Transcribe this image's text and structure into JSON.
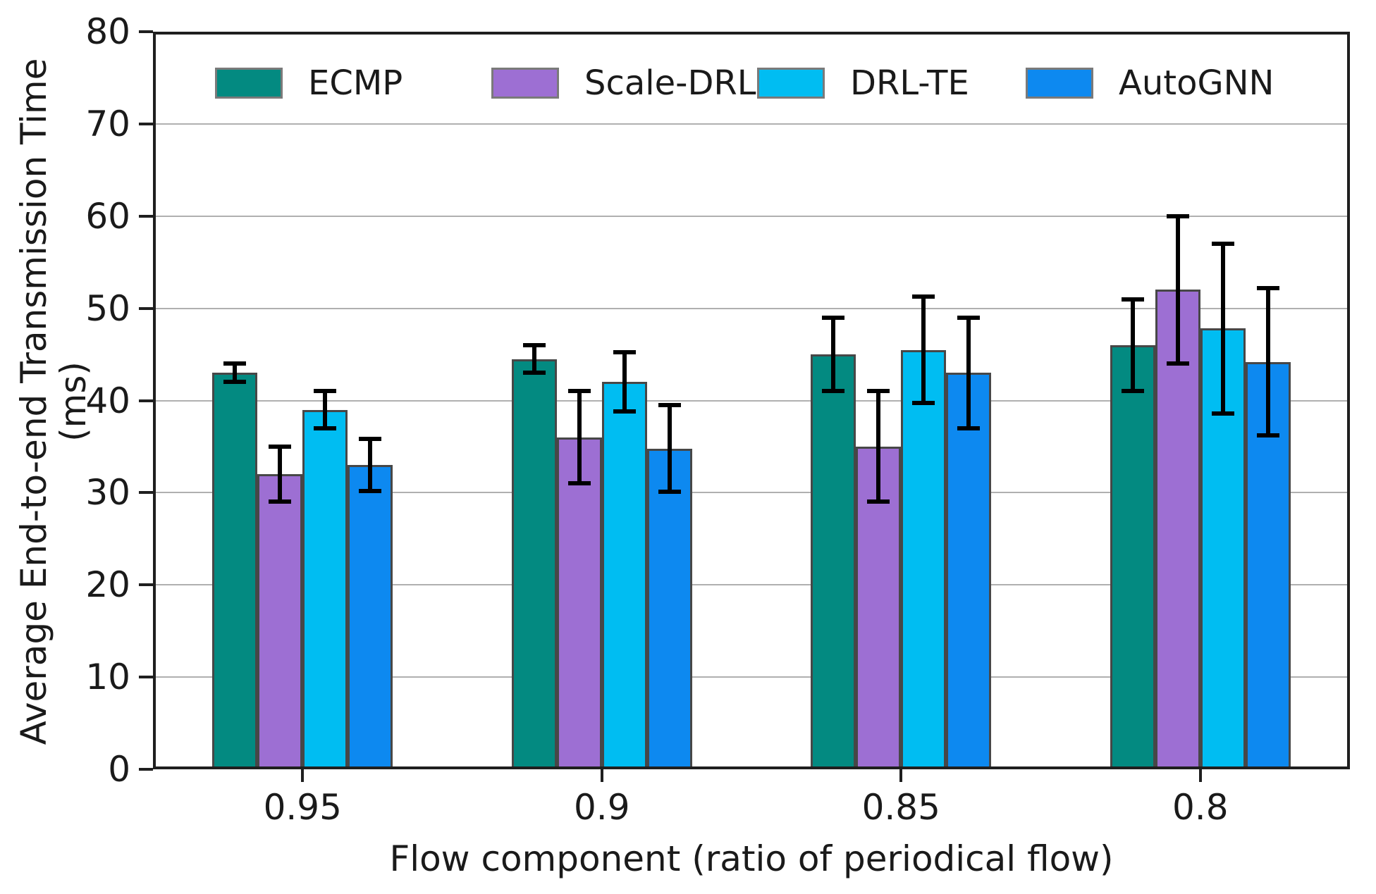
{
  "chart_data": {
    "type": "bar",
    "title": "",
    "xlabel": "Flow component (ratio of periodical flow)",
    "ylabel": "Average End-to-end Transmission Time (ms)",
    "categories": [
      "0.95",
      "0.9",
      "0.85",
      "0.8"
    ],
    "ylim": [
      0,
      80
    ],
    "yticks": [
      0,
      10,
      20,
      30,
      40,
      50,
      60,
      70,
      80
    ],
    "grid": "horizontal",
    "grid_color": "#b0b0b0",
    "legend_position": "top-inside-row",
    "error_bars": true,
    "error_bar_color": "#000000",
    "bar_edge_color": "#474747",
    "series": [
      {
        "name": "ECMP",
        "color": "#038a81",
        "values": [
          43,
          44.5,
          45,
          46
        ],
        "errors": [
          1,
          1.5,
          4,
          5
        ]
      },
      {
        "name": "Scale-DRL",
        "color": "#9d6fd3",
        "values": [
          32,
          36,
          35,
          52
        ],
        "errors": [
          3,
          5,
          6,
          8
        ]
      },
      {
        "name": "DRL-TE",
        "color": "#00bdf2",
        "values": [
          39,
          42,
          45.5,
          47.8
        ],
        "errors": [
          2,
          3.2,
          5.8,
          9.2
        ]
      },
      {
        "name": "AutoGNN",
        "color": "#0d89f0",
        "values": [
          33,
          34.8,
          43,
          44.2
        ],
        "errors": [
          2.8,
          4.7,
          6,
          8
        ]
      }
    ]
  }
}
